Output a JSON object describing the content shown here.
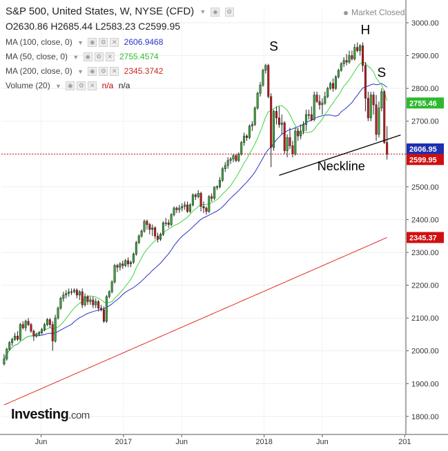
{
  "header": {
    "symbol_title": "S&P 500, United States, W, NYSE (CFD)",
    "ohlc": {
      "open": "O2630.86",
      "high": "H2685.44",
      "low": "L2583.23",
      "close": "C2599.95"
    },
    "market_status": "Market Closed",
    "indicators": [
      {
        "label": "MA (100, close, 0)",
        "value": "2606.9468",
        "color": "#2a32c8"
      },
      {
        "label": "MA (50, close, 0)",
        "value": "2755.4574",
        "color": "#3fd33f"
      },
      {
        "label": "MA (200, close, 0)",
        "value": "2345.3742",
        "color": "#e0281e"
      },
      {
        "label": "Volume (20)",
        "value1": "n/a",
        "value2": "n/a",
        "color": "#c00000"
      }
    ]
  },
  "branding": {
    "name": "Investing",
    "suffix": ".com"
  },
  "chart_data": {
    "type": "candlestick",
    "title": "S&P 500, United States, W, NYSE (CFD)",
    "x_tick_labels": [
      "Jun",
      "2017",
      "Jun",
      "2018",
      "Jun",
      "201"
    ],
    "x_tick_dates": [
      "2016-06-01",
      "2017-01-01",
      "2017-06-01",
      "2018-01-01",
      "2018-06-01",
      "2019-01-01"
    ],
    "y_ticks": [
      1800,
      1900,
      2000,
      2100,
      2200,
      2300,
      2400,
      2500,
      2600,
      2700,
      2800,
      2900,
      3000
    ],
    "ylim": [
      1745,
      3040
    ],
    "price_tags": [
      {
        "value": 2755.46,
        "label": "2755.46",
        "color": "#2fb82f"
      },
      {
        "value": 2606.95,
        "label": "2606.95",
        "color": "#1f2fb0"
      },
      {
        "value": 2599.95,
        "label": "2599.95",
        "color": "#d01010"
      },
      {
        "value": 2345.37,
        "label": "2345.37",
        "color": "#d01010"
      }
    ],
    "last_close_line": 2599.95,
    "annotations": [
      {
        "text": "S",
        "date": "2018-01-26",
        "value": 2915
      },
      {
        "text": "H",
        "date": "2018-09-21",
        "value": 2965
      },
      {
        "text": "S",
        "date": "2018-11-02",
        "value": 2835
      },
      {
        "text": "Neckline",
        "date": "2018-07-20",
        "value": 2550
      }
    ],
    "neckline": [
      {
        "date": "2018-02-09",
        "value": 2535
      },
      {
        "date": "2018-12-07",
        "value": 2658
      }
    ],
    "candles": {
      "start_date": "2016-02-26",
      "interval_days": 7,
      "ohlc": [
        [
          1960,
          1990,
          1955,
          1975
        ],
        [
          1975,
          2010,
          1970,
          2005
        ],
        [
          2005,
          2030,
          2000,
          2025
        ],
        [
          2025,
          2040,
          2015,
          2035
        ],
        [
          2035,
          2055,
          2030,
          2045
        ],
        [
          2045,
          2060,
          2030,
          2035
        ],
        [
          2035,
          2085,
          2030,
          2080
        ],
        [
          2080,
          2090,
          2065,
          2070
        ],
        [
          2070,
          2095,
          2060,
          2090
        ],
        [
          2090,
          2100,
          2075,
          2080
        ],
        [
          2080,
          2085,
          2055,
          2060
        ],
        [
          2060,
          2065,
          2030,
          2045
        ],
        [
          2045,
          2055,
          2040,
          2050
        ],
        [
          2050,
          2060,
          2045,
          2055
        ],
        [
          2055,
          2070,
          2050,
          2065
        ],
        [
          2065,
          2085,
          2060,
          2080
        ],
        [
          2080,
          2100,
          2075,
          2095
        ],
        [
          2095,
          2100,
          2070,
          2080
        ],
        [
          2080,
          2090,
          2000,
          2030
        ],
        [
          2030,
          2110,
          2025,
          2100
        ],
        [
          2100,
          2135,
          2095,
          2130
        ],
        [
          2130,
          2165,
          2125,
          2160
        ],
        [
          2160,
          2180,
          2150,
          2170
        ],
        [
          2170,
          2185,
          2160,
          2175
        ],
        [
          2175,
          2190,
          2165,
          2180
        ],
        [
          2180,
          2190,
          2170,
          2180
        ],
        [
          2180,
          2190,
          2175,
          2185
        ],
        [
          2185,
          2190,
          2160,
          2170
        ],
        [
          2170,
          2185,
          2155,
          2180
        ],
        [
          2180,
          2190,
          2130,
          2140
        ],
        [
          2140,
          2175,
          2135,
          2165
        ],
        [
          2165,
          2170,
          2140,
          2150
        ],
        [
          2150,
          2165,
          2140,
          2155
        ],
        [
          2155,
          2165,
          2130,
          2140
        ],
        [
          2140,
          2160,
          2130,
          2150
        ],
        [
          2150,
          2155,
          2120,
          2130
        ],
        [
          2130,
          2140,
          2120,
          2125
        ],
        [
          2125,
          2135,
          2085,
          2090
        ],
        [
          2090,
          2170,
          2085,
          2165
        ],
        [
          2165,
          2185,
          2160,
          2180
        ],
        [
          2180,
          2215,
          2175,
          2210
        ],
        [
          2210,
          2265,
          2205,
          2260
        ],
        [
          2260,
          2265,
          2240,
          2255
        ],
        [
          2255,
          2270,
          2245,
          2265
        ],
        [
          2265,
          2275,
          2250,
          2260
        ],
        [
          2260,
          2280,
          2255,
          2275
        ],
        [
          2275,
          2285,
          2255,
          2265
        ],
        [
          2265,
          2275,
          2255,
          2270
        ],
        [
          2270,
          2300,
          2265,
          2295
        ],
        [
          2295,
          2335,
          2290,
          2330
        ],
        [
          2330,
          2355,
          2325,
          2350
        ],
        [
          2350,
          2370,
          2345,
          2365
        ],
        [
          2365,
          2400,
          2360,
          2395
        ],
        [
          2395,
          2400,
          2370,
          2385
        ],
        [
          2385,
          2390,
          2355,
          2370
        ],
        [
          2370,
          2385,
          2350,
          2375
        ],
        [
          2375,
          2380,
          2340,
          2350
        ],
        [
          2350,
          2360,
          2330,
          2340
        ],
        [
          2340,
          2360,
          2335,
          2355
        ],
        [
          2355,
          2395,
          2350,
          2390
        ],
        [
          2390,
          2405,
          2380,
          2390
        ],
        [
          2390,
          2400,
          2375,
          2385
        ],
        [
          2385,
          2420,
          2380,
          2415
        ],
        [
          2415,
          2440,
          2410,
          2435
        ],
        [
          2435,
          2440,
          2420,
          2430
        ],
        [
          2430,
          2445,
          2420,
          2435
        ],
        [
          2435,
          2450,
          2425,
          2440
        ],
        [
          2440,
          2455,
          2430,
          2445
        ],
        [
          2445,
          2455,
          2420,
          2425
        ],
        [
          2425,
          2450,
          2420,
          2445
        ],
        [
          2445,
          2480,
          2440,
          2475
        ],
        [
          2475,
          2480,
          2460,
          2470
        ],
        [
          2470,
          2490,
          2465,
          2480
        ],
        [
          2480,
          2485,
          2425,
          2440
        ],
        [
          2440,
          2455,
          2420,
          2435
        ],
        [
          2435,
          2440,
          2415,
          2425
        ],
        [
          2425,
          2475,
          2420,
          2470
        ],
        [
          2470,
          2480,
          2455,
          2465
        ],
        [
          2465,
          2500,
          2460,
          2500
        ],
        [
          2500,
          2505,
          2490,
          2500
        ],
        [
          2500,
          2530,
          2495,
          2520
        ],
        [
          2520,
          2560,
          2515,
          2555
        ],
        [
          2555,
          2575,
          2545,
          2565
        ],
        [
          2565,
          2590,
          2555,
          2580
        ],
        [
          2580,
          2590,
          2570,
          2585
        ],
        [
          2585,
          2600,
          2575,
          2595
        ],
        [
          2595,
          2600,
          2575,
          2580
        ],
        [
          2580,
          2605,
          2575,
          2600
        ],
        [
          2600,
          2640,
          2595,
          2635
        ],
        [
          2635,
          2665,
          2625,
          2655
        ],
        [
          2655,
          2660,
          2640,
          2650
        ],
        [
          2650,
          2690,
          2645,
          2685
        ],
        [
          2685,
          2700,
          2670,
          2690
        ],
        [
          2690,
          2745,
          2685,
          2740
        ],
        [
          2740,
          2790,
          2735,
          2785
        ],
        [
          2785,
          2820,
          2775,
          2810
        ],
        [
          2810,
          2860,
          2805,
          2855
        ],
        [
          2855,
          2875,
          2845,
          2870
        ],
        [
          2870,
          2875,
          2770,
          2775
        ],
        [
          2775,
          2785,
          2560,
          2620
        ],
        [
          2620,
          2735,
          2610,
          2730
        ],
        [
          2730,
          2745,
          2690,
          2710
        ],
        [
          2710,
          2745,
          2680,
          2690
        ],
        [
          2690,
          2720,
          2660,
          2695
        ],
        [
          2695,
          2700,
          2600,
          2610
        ],
        [
          2610,
          2660,
          2590,
          2650
        ],
        [
          2650,
          2680,
          2615,
          2625
        ],
        [
          2625,
          2640,
          2590,
          2600
        ],
        [
          2600,
          2680,
          2595,
          2670
        ],
        [
          2670,
          2680,
          2640,
          2655
        ],
        [
          2655,
          2690,
          2645,
          2670
        ],
        [
          2670,
          2700,
          2660,
          2690
        ],
        [
          2690,
          2735,
          2670,
          2720
        ],
        [
          2720,
          2735,
          2705,
          2720
        ],
        [
          2720,
          2745,
          2700,
          2705
        ],
        [
          2705,
          2790,
          2700,
          2780
        ],
        [
          2780,
          2790,
          2755,
          2760
        ],
        [
          2760,
          2780,
          2735,
          2750
        ],
        [
          2750,
          2770,
          2720,
          2755
        ],
        [
          2755,
          2790,
          2750,
          2775
        ],
        [
          2775,
          2805,
          2770,
          2800
        ],
        [
          2800,
          2820,
          2795,
          2815
        ],
        [
          2815,
          2830,
          2790,
          2800
        ],
        [
          2800,
          2840,
          2795,
          2835
        ],
        [
          2835,
          2860,
          2830,
          2855
        ],
        [
          2855,
          2880,
          2850,
          2875
        ],
        [
          2875,
          2895,
          2865,
          2885
        ],
        [
          2885,
          2905,
          2870,
          2880
        ],
        [
          2880,
          2915,
          2875,
          2900
        ],
        [
          2900,
          2915,
          2885,
          2890
        ],
        [
          2890,
          2935,
          2885,
          2925
        ],
        [
          2925,
          2940,
          2910,
          2915
        ],
        [
          2915,
          2935,
          2900,
          2930
        ],
        [
          2930,
          2940,
          2850,
          2870
        ],
        [
          2870,
          2880,
          2730,
          2770
        ],
        [
          2770,
          2790,
          2700,
          2710
        ],
        [
          2710,
          2790,
          2700,
          2780
        ],
        [
          2780,
          2790,
          2720,
          2750
        ],
        [
          2750,
          2780,
          2640,
          2660
        ],
        [
          2660,
          2760,
          2650,
          2740
        ],
        [
          2740,
          2800,
          2730,
          2790
        ],
        [
          2790,
          2795,
          2630,
          2635
        ],
        [
          2635,
          2685,
          2583,
          2600
        ]
      ]
    }
  }
}
